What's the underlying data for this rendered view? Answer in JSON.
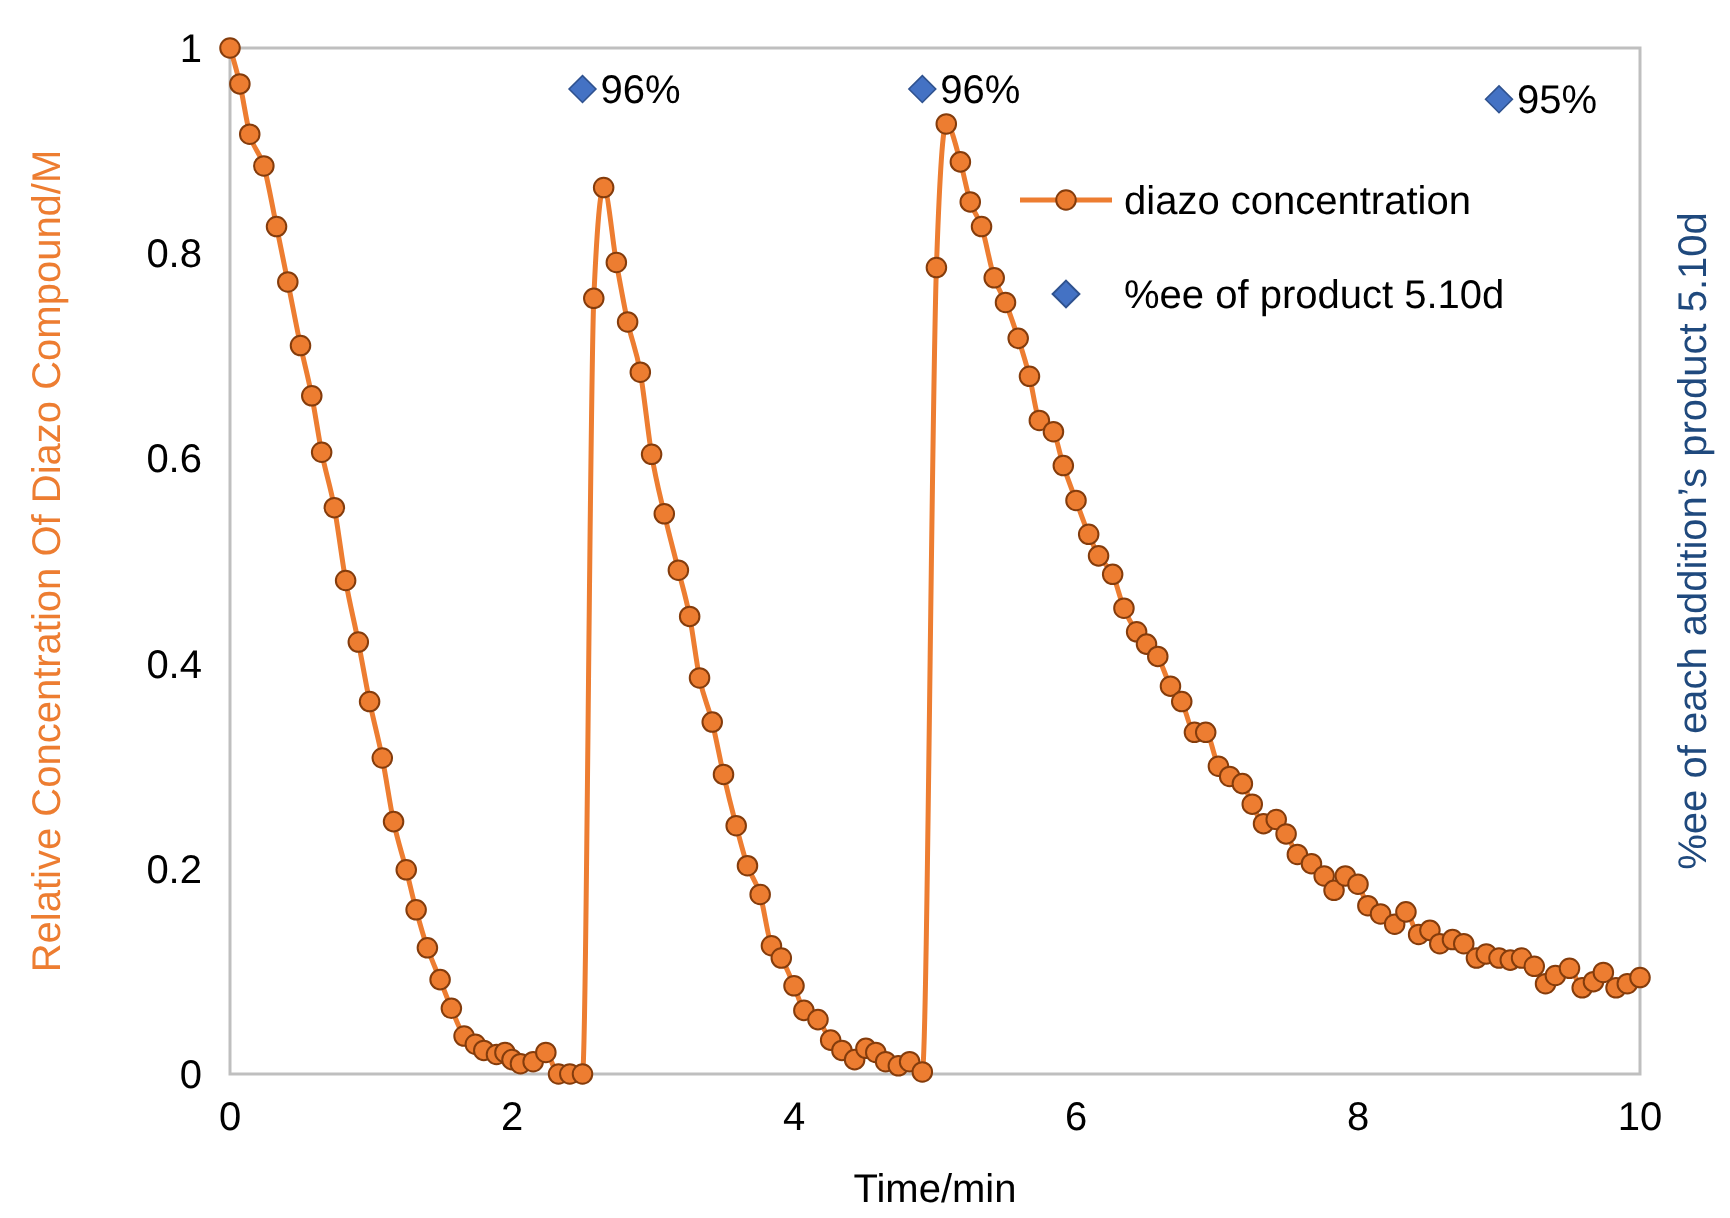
{
  "chart_data": {
    "type": "line",
    "xlabel": "Time/min",
    "ylabel": "Relative Concentration Of Diazo Compound/M",
    "y2label": "%ee of each addition’s product 5.10d",
    "xlim": [
      0,
      10
    ],
    "xticks": [
      0,
      2,
      4,
      6,
      8,
      10
    ],
    "ylim": [
      0,
      1
    ],
    "yticks": [
      0,
      0.2,
      0.4,
      0.6,
      0.8,
      1
    ],
    "grid": false,
    "legend": "top right",
    "series": [
      {
        "name": "diazo concentration",
        "color": "#ed7d31",
        "marker": "circle",
        "line_style": "solid",
        "x": [
          0,
          0.07,
          0.14,
          0.24,
          0.33,
          0.41,
          0.5,
          0.58,
          0.65,
          0.74,
          0.82,
          0.91,
          0.99,
          1.08,
          1.16,
          1.25,
          1.32,
          1.4,
          1.49,
          1.57,
          1.66,
          1.74,
          1.8,
          1.89,
          1.95,
          2.0,
          2.06,
          2.15,
          2.24,
          2.33,
          2.41,
          2.5,
          2.58,
          2.65,
          2.74,
          2.82,
          2.91,
          2.99,
          3.08,
          3.18,
          3.26,
          3.33,
          3.42,
          3.5,
          3.59,
          3.67,
          3.76,
          3.84,
          3.91,
          4.0,
          4.07,
          4.17,
          4.26,
          4.34,
          4.43,
          4.51,
          4.58,
          4.65,
          4.74,
          4.82,
          4.91,
          5.01,
          5.08,
          5.18,
          5.25,
          5.33,
          5.42,
          5.5,
          5.59,
          5.67,
          5.74,
          5.84,
          5.91,
          6.0,
          6.09,
          6.16,
          6.26,
          6.34,
          6.43,
          6.5,
          6.58,
          6.67,
          6.75,
          6.84,
          6.92,
          7.01,
          7.09,
          7.18,
          7.25,
          7.33,
          7.42,
          7.49,
          7.57,
          7.67,
          7.76,
          7.83,
          7.91,
          8.0,
          8.07,
          8.16,
          8.26,
          8.34,
          8.43,
          8.51,
          8.58,
          8.67,
          8.75,
          8.84,
          8.91,
          9.0,
          9.08,
          9.16,
          9.25,
          9.33,
          9.4,
          9.5,
          9.59,
          9.67,
          9.74,
          9.83,
          9.91,
          10.0
        ],
        "values": [
          1.0,
          0.965,
          0.916,
          0.885,
          0.826,
          0.772,
          0.71,
          0.661,
          0.606,
          0.552,
          0.481,
          0.421,
          0.363,
          0.308,
          0.246,
          0.199,
          0.16,
          0.123,
          0.092,
          0.064,
          0.037,
          0.029,
          0.023,
          0.019,
          0.021,
          0.014,
          0.01,
          0.012,
          0.021,
          0,
          0,
          0,
          0.756,
          0.864,
          0.791,
          0.733,
          0.684,
          0.604,
          0.546,
          0.491,
          0.446,
          0.386,
          0.343,
          0.292,
          0.242,
          0.203,
          0.175,
          0.125,
          0.113,
          0.086,
          0.062,
          0.053,
          0.033,
          0.023,
          0.014,
          0.025,
          0.021,
          0.012,
          0.008,
          0.012,
          0.002,
          0.786,
          0.926,
          0.889,
          0.85,
          0.826,
          0.776,
          0.752,
          0.717,
          0.68,
          0.637,
          0.626,
          0.593,
          0.559,
          0.526,
          0.505,
          0.487,
          0.454,
          0.431,
          0.419,
          0.407,
          0.378,
          0.363,
          0.333,
          0.333,
          0.3,
          0.29,
          0.283,
          0.263,
          0.244,
          0.248,
          0.234,
          0.214,
          0.205,
          0.193,
          0.179,
          0.193,
          0.185,
          0.164,
          0.156,
          0.146,
          0.158,
          0.136,
          0.14,
          0.127,
          0.131,
          0.127,
          0.113,
          0.117,
          0.113,
          0.111,
          0.113,
          0.105,
          0.088,
          0.096,
          0.103,
          0.084,
          0.09,
          0.099,
          0.084,
          0.088,
          0.094
        ]
      },
      {
        "name": "%ee of product 5.10d",
        "type": "scatter",
        "color": "#4472c4",
        "marker": "diamond",
        "x": [
          2.5,
          4.91,
          9.0
        ],
        "values": [
          0.96,
          0.96,
          0.95
        ],
        "value_labels": [
          "96%",
          "96%",
          "95%"
        ]
      }
    ]
  }
}
